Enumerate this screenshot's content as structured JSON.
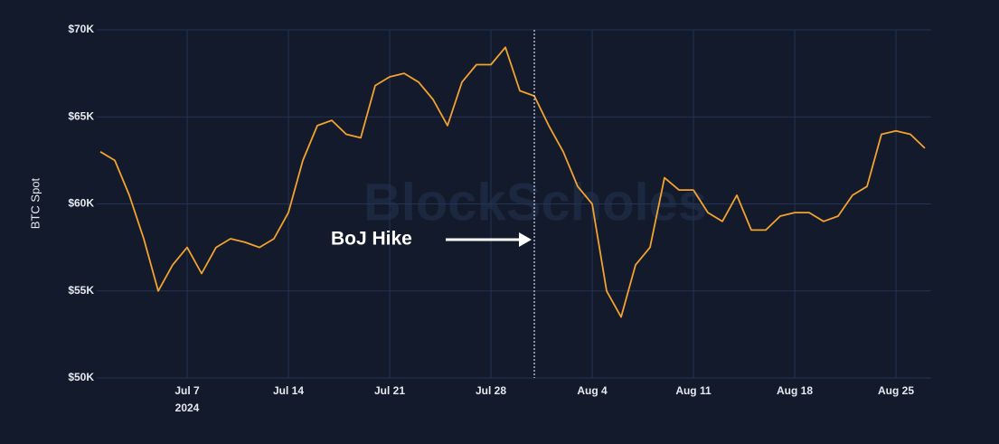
{
  "chart_data": {
    "type": "line",
    "y_label": "BTC Spot",
    "watermark": "BlockScholes",
    "x": [
      "2024-07-01",
      "2024-07-02",
      "2024-07-03",
      "2024-07-04",
      "2024-07-05",
      "2024-07-06",
      "2024-07-07",
      "2024-07-08",
      "2024-07-09",
      "2024-07-10",
      "2024-07-11",
      "2024-07-12",
      "2024-07-13",
      "2024-07-14",
      "2024-07-15",
      "2024-07-16",
      "2024-07-17",
      "2024-07-18",
      "2024-07-19",
      "2024-07-20",
      "2024-07-21",
      "2024-07-22",
      "2024-07-23",
      "2024-07-24",
      "2024-07-25",
      "2024-07-26",
      "2024-07-27",
      "2024-07-28",
      "2024-07-29",
      "2024-07-30",
      "2024-07-31",
      "2024-08-01",
      "2024-08-02",
      "2024-08-03",
      "2024-08-04",
      "2024-08-05",
      "2024-08-06",
      "2024-08-07",
      "2024-08-08",
      "2024-08-09",
      "2024-08-10",
      "2024-08-11",
      "2024-08-12",
      "2024-08-13",
      "2024-08-14",
      "2024-08-15",
      "2024-08-16",
      "2024-08-17",
      "2024-08-18",
      "2024-08-19",
      "2024-08-20",
      "2024-08-21",
      "2024-08-22",
      "2024-08-23",
      "2024-08-24",
      "2024-08-25",
      "2024-08-26",
      "2024-08-27"
    ],
    "series": [
      {
        "name": "BTC Spot",
        "color": "#f2a22e",
        "values": [
          63000,
          62500,
          60500,
          58000,
          55000,
          56500,
          57500,
          56000,
          57500,
          58000,
          57800,
          57500,
          58000,
          59500,
          62500,
          64500,
          64800,
          64000,
          63800,
          66800,
          67300,
          67500,
          67000,
          66000,
          64500,
          67000,
          68000,
          68000,
          69000,
          66500,
          66200,
          64500,
          63000,
          61000,
          60000,
          55000,
          53500,
          56500,
          57500,
          61500,
          60800,
          60800,
          59500,
          59000,
          60500,
          58500,
          58500,
          59300,
          59500,
          59500,
          59000,
          59300,
          60500,
          61000,
          64000,
          64200,
          64000,
          63200
        ]
      }
    ],
    "xlim": [
      "2024-07-01",
      "2024-08-27"
    ],
    "xticks": [
      {
        "value": "2024-07-07",
        "label": "Jul 7"
      },
      {
        "value": "2024-07-14",
        "label": "Jul 14"
      },
      {
        "value": "2024-07-21",
        "label": "Jul 21"
      },
      {
        "value": "2024-07-28",
        "label": "Jul 28"
      },
      {
        "value": "2024-08-04",
        "label": "Aug 4"
      },
      {
        "value": "2024-08-11",
        "label": "Aug 11"
      },
      {
        "value": "2024-08-18",
        "label": "Aug 18"
      },
      {
        "value": "2024-08-25",
        "label": "Aug 25"
      }
    ],
    "xtick_year": "2024",
    "ylim": [
      50000,
      70000
    ],
    "yticks": [
      {
        "value": 50000,
        "label": "$50K"
      },
      {
        "value": 55000,
        "label": "$55K"
      },
      {
        "value": 60000,
        "label": "$60K"
      },
      {
        "value": 65000,
        "label": "$65K"
      },
      {
        "value": 70000,
        "label": "$70K"
      }
    ],
    "grid": true,
    "annotation": {
      "text": "BoJ Hike",
      "x": "2024-07-31"
    }
  }
}
